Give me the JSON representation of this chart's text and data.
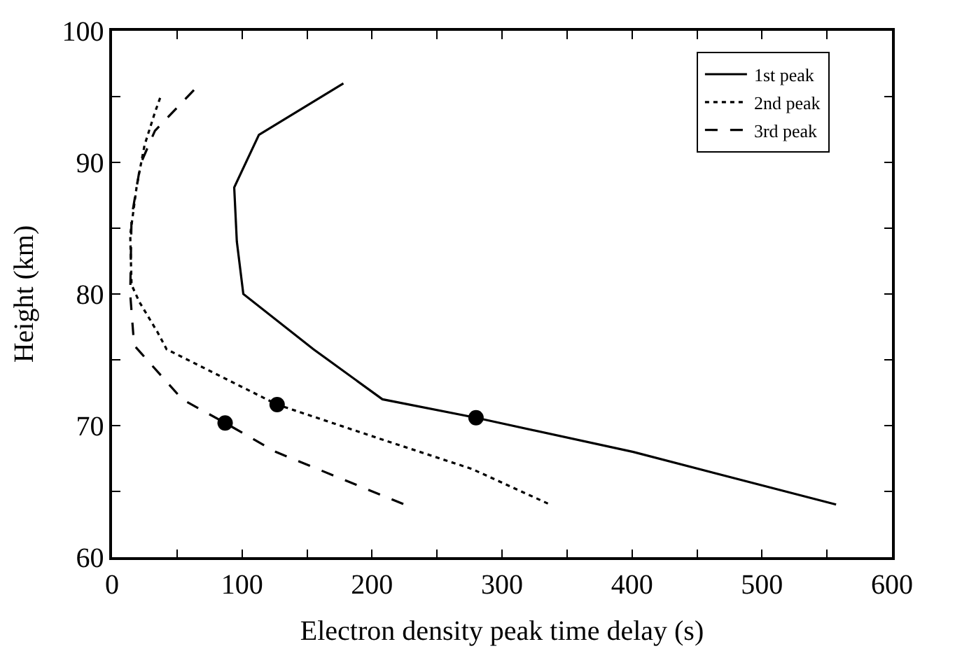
{
  "chart_data": {
    "type": "line",
    "xlabel": "Electron density peak time delay (s)",
    "ylabel": "Height (km)",
    "xlim": [
      0,
      600
    ],
    "ylim": [
      60,
      100
    ],
    "xticks": [
      0,
      {
        "value": 50,
        "label": null
      },
      100,
      {
        "value": 150,
        "label": null
      },
      200,
      {
        "value": 250,
        "label": null
      },
      300,
      {
        "value": 350,
        "label": null
      },
      400,
      {
        "value": 450,
        "label": null
      },
      500,
      {
        "value": 550,
        "label": null
      },
      600
    ],
    "yticks": [
      60,
      {
        "value": 65,
        "label": null
      },
      70,
      {
        "value": 75,
        "label": null
      },
      80,
      {
        "value": 85,
        "label": null
      },
      90,
      {
        "value": 95,
        "label": null
      },
      100
    ],
    "legend": "top right",
    "marker": "none",
    "series": [
      {
        "name": "1st peak",
        "color": "#000000",
        "line_style": "solid",
        "x": [
          178,
          113,
          94,
          96,
          101,
          155,
          208,
          280,
          401,
          557
        ],
        "values": [
          96,
          92.1,
          88.1,
          84,
          80,
          75.8,
          72,
          70.6,
          68,
          64
        ]
      },
      {
        "name": "2nd peak",
        "color": "#000000",
        "line_style": "dotted",
        "x": [
          37,
          33,
          25,
          19,
          14,
          15,
          21,
          35,
          42,
          127,
          203,
          277,
          337
        ],
        "values": [
          94.9,
          93.8,
          91.3,
          88.2,
          84.5,
          80.7,
          79.4,
          77.1,
          75.8,
          71.6,
          69.1,
          66.7,
          64
        ]
      },
      {
        "name": "3rd peak",
        "color": "#000000",
        "line_style": "dashed",
        "x": [
          63,
          33,
          22,
          15,
          14,
          17,
          54,
          87,
          126,
          225
        ],
        "values": [
          95.5,
          92.4,
          89.9,
          85.8,
          80,
          76.1,
          72,
          70.2,
          68,
          64
        ]
      },
      {
        "type": "scatter",
        "color": "#000000",
        "marker": "circle",
        "x": [
          280,
          127,
          87
        ],
        "values": [
          70.6,
          71.6,
          70.2
        ]
      }
    ]
  }
}
